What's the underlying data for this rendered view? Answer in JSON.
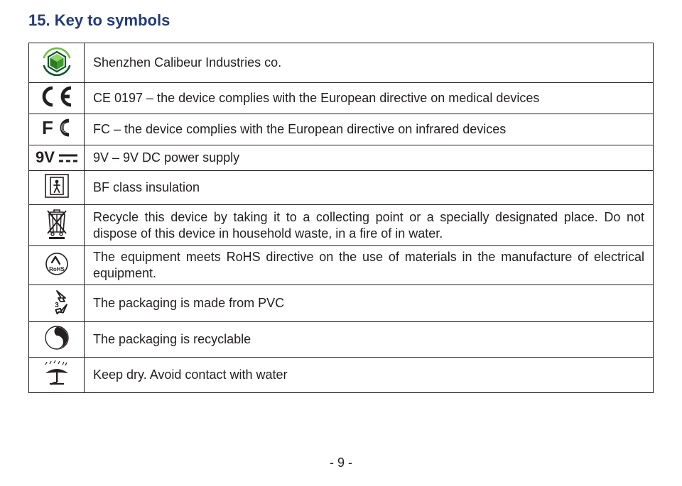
{
  "heading": "15. Key to symbols",
  "page_number": "- 9 -",
  "colors": {
    "heading": "#223a7a",
    "text": "#231f20",
    "border": "#231f20",
    "background": "#ffffff",
    "logo_green_dark": "#0a572a",
    "logo_green_light": "#6fbf44"
  },
  "rows": [
    {
      "icon": "logo",
      "text": "Shenzhen Calibeur Industries co."
    },
    {
      "icon": "ce",
      "text": "CE 0197 – the device complies with the European directive on medical devices"
    },
    {
      "icon": "fc",
      "text": "FC – the device complies with the European directive on infrared devices"
    },
    {
      "icon": "9v",
      "text": "9V – 9V DC power supply"
    },
    {
      "icon": "bf",
      "text": "BF class insulation"
    },
    {
      "icon": "weee",
      "text": "Recycle this device by taking it to a collecting point or a specially designated place. Do not dispose of this device in household waste, in a fire of in water.",
      "justify": true
    },
    {
      "icon": "rohs",
      "text": "The equipment meets RoHS directive on the use of materials in the manufacture of electrical equipment.",
      "justify": true
    },
    {
      "icon": "pvc",
      "text": "The packaging is made from PVC"
    },
    {
      "icon": "gdot",
      "text": "The packaging is recyclable"
    },
    {
      "icon": "dry",
      "text": "Keep dry. Avoid contact with water"
    }
  ]
}
